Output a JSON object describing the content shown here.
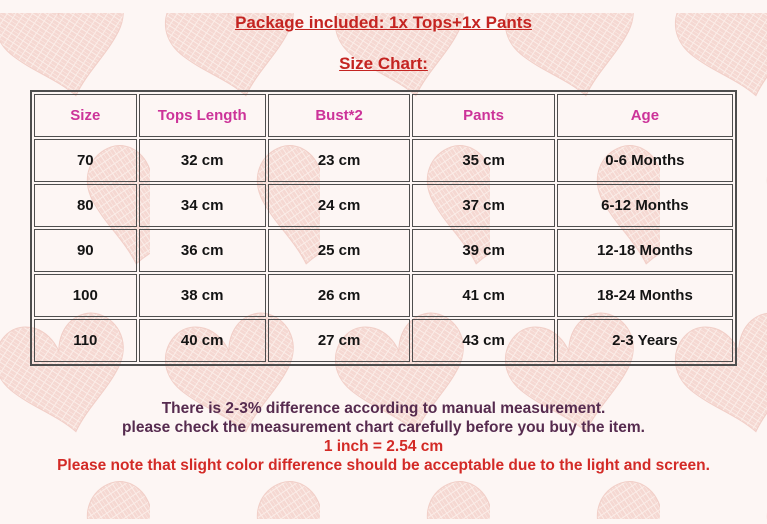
{
  "header": {
    "package_line": "Package included: 1x Tops+1x Pants",
    "size_chart_label": "Size Chart:"
  },
  "size_chart": {
    "columns": [
      "Size",
      "Tops Length",
      "Bust*2",
      "Pants",
      "Age"
    ],
    "rows": [
      [
        "70",
        "32 cm",
        "23 cm",
        "35 cm",
        "0-6 Months"
      ],
      [
        "80",
        "34 cm",
        "24 cm",
        "37 cm",
        "6-12 Months"
      ],
      [
        "90",
        "36 cm",
        "25 cm",
        "39 cm",
        "12-18 Months"
      ],
      [
        "100",
        "38 cm",
        "26 cm",
        "41 cm",
        "18-24 Months"
      ],
      [
        "110",
        "40 cm",
        "27 cm",
        "43 cm",
        "2-3 Years"
      ]
    ]
  },
  "notes": {
    "line1": "There is 2-3% difference according to manual measurement.",
    "line2": "please check the measurement chart carefully before you buy the item.",
    "line3": "1 inch = 2.54 cm",
    "line4": "Please note that slight color difference should be acceptable due to the light and screen."
  },
  "colors": {
    "title_red": "#c42421",
    "table_header_pink": "#cc3399",
    "cell_text": "#141414",
    "table_border": "#4e4e4e",
    "note_dark": "#562b4f",
    "note_red": "#d32a26",
    "background_base": "#fdf6f4",
    "heart_pink": "#f4d5ce"
  }
}
